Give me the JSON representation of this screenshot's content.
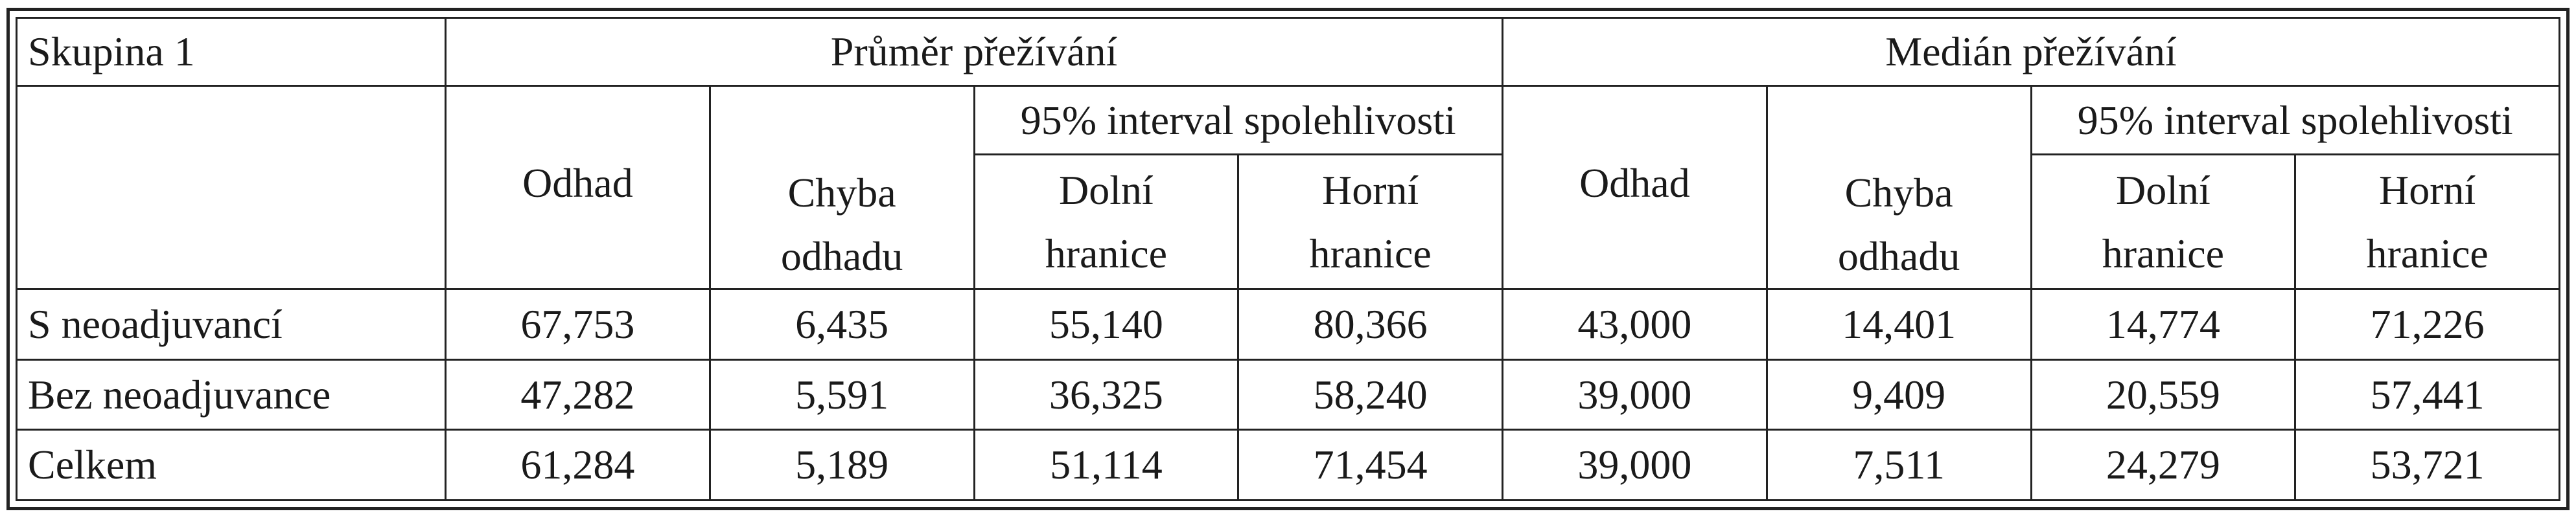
{
  "table": {
    "corner": "Skupina 1",
    "groups": [
      {
        "title": "Průměr přežívání",
        "estimate": "Odhad",
        "error": [
          "Chyba",
          "odhadu"
        ],
        "ci": "95% interval spolehlivosti",
        "lower": [
          "Dolní",
          "hranice"
        ],
        "upper": [
          "Horní",
          "hranice"
        ]
      },
      {
        "title": "Medián přežívání",
        "estimate": "Odhad",
        "error": [
          "Chyba",
          "odhadu"
        ],
        "ci": "95% interval spolehlivosti",
        "lower": [
          "Dolní",
          "hranice"
        ],
        "upper": [
          "Horní",
          "hranice"
        ]
      }
    ],
    "rows": [
      [
        "S neoadjuvancí",
        "67,753",
        "6,435",
        "55,140",
        "80,366",
        "43,000",
        "14,401",
        "14,774",
        "71,226"
      ],
      [
        "Bez neoadjuvance",
        "47,282",
        "5,591",
        "36,325",
        "58,240",
        "39,000",
        "9,409",
        "20,559",
        "57,441"
      ],
      [
        "Celkem",
        "61,284",
        "5,189",
        "51,114",
        "71,454",
        "39,000",
        "7,511",
        "24,279",
        "53,721"
      ]
    ]
  }
}
